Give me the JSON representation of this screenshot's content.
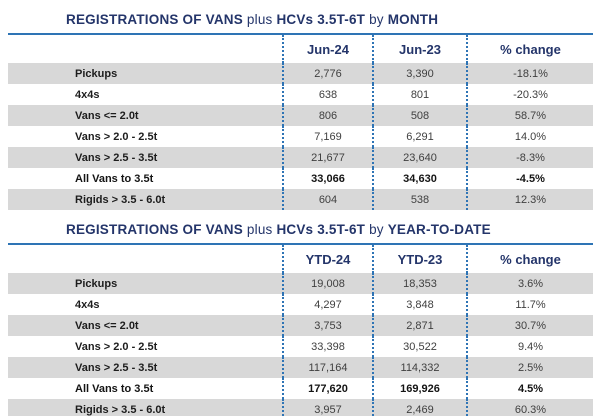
{
  "colors": {
    "title_navy": "#24356a",
    "rule_blue": "#2e74b5",
    "separator_blue": "#2e74b5",
    "stripe_gray": "#d8d8d8"
  },
  "tables": [
    {
      "name": "monthly",
      "title_segments": [
        {
          "text": "REGISTRATIONS OF VANS",
          "bold": true
        },
        {
          "text": " plus ",
          "bold": false
        },
        {
          "text": "HCVs 3.5T-6T",
          "bold": true
        },
        {
          "text": " by ",
          "bold": false
        },
        {
          "text": "MONTH",
          "bold": true
        }
      ],
      "columns": [
        "",
        "Jun-24",
        "Jun-23",
        "% change"
      ],
      "rows": [
        {
          "label": "Pickups",
          "values": [
            "2,776",
            "3,390",
            "-18.1%"
          ],
          "bold": false
        },
        {
          "label": "4x4s",
          "values": [
            "638",
            "801",
            "-20.3%"
          ],
          "bold": false
        },
        {
          "label": "Vans <= 2.0t",
          "values": [
            "806",
            "508",
            "58.7%"
          ],
          "bold": false
        },
        {
          "label": "Vans > 2.0 - 2.5t",
          "values": [
            "7,169",
            "6,291",
            "14.0%"
          ],
          "bold": false
        },
        {
          "label": "Vans > 2.5 - 3.5t",
          "values": [
            "21,677",
            "23,640",
            "-8.3%"
          ],
          "bold": false
        },
        {
          "label": "All Vans to 3.5t",
          "values": [
            "33,066",
            "34,630",
            "-4.5%"
          ],
          "bold": true
        },
        {
          "label": "Rigids > 3.5 - 6.0t",
          "values": [
            "604",
            "538",
            "12.3%"
          ],
          "bold": false
        }
      ]
    },
    {
      "name": "year-to-date",
      "title_segments": [
        {
          "text": "REGISTRATIONS OF VANS",
          "bold": true
        },
        {
          "text": " plus ",
          "bold": false
        },
        {
          "text": "HCVs 3.5T-6T",
          "bold": true
        },
        {
          "text": " by ",
          "bold": false
        },
        {
          "text": "YEAR-TO-DATE",
          "bold": true
        }
      ],
      "columns": [
        "",
        "YTD-24",
        "YTD-23",
        "% change"
      ],
      "rows": [
        {
          "label": "Pickups",
          "values": [
            "19,008",
            "18,353",
            "3.6%"
          ],
          "bold": false
        },
        {
          "label": "4x4s",
          "values": [
            "4,297",
            "3,848",
            "11.7%"
          ],
          "bold": false
        },
        {
          "label": "Vans <= 2.0t",
          "values": [
            "3,753",
            "2,871",
            "30.7%"
          ],
          "bold": false
        },
        {
          "label": "Vans > 2.0 - 2.5t",
          "values": [
            "33,398",
            "30,522",
            "9.4%"
          ],
          "bold": false
        },
        {
          "label": "Vans > 2.5 - 3.5t",
          "values": [
            "117,164",
            "114,332",
            "2.5%"
          ],
          "bold": false
        },
        {
          "label": "All Vans to 3.5t",
          "values": [
            "177,620",
            "169,926",
            "4.5%"
          ],
          "bold": true
        },
        {
          "label": "Rigids > 3.5 - 6.0t",
          "values": [
            "3,957",
            "2,469",
            "60.3%"
          ],
          "bold": false
        }
      ]
    }
  ]
}
